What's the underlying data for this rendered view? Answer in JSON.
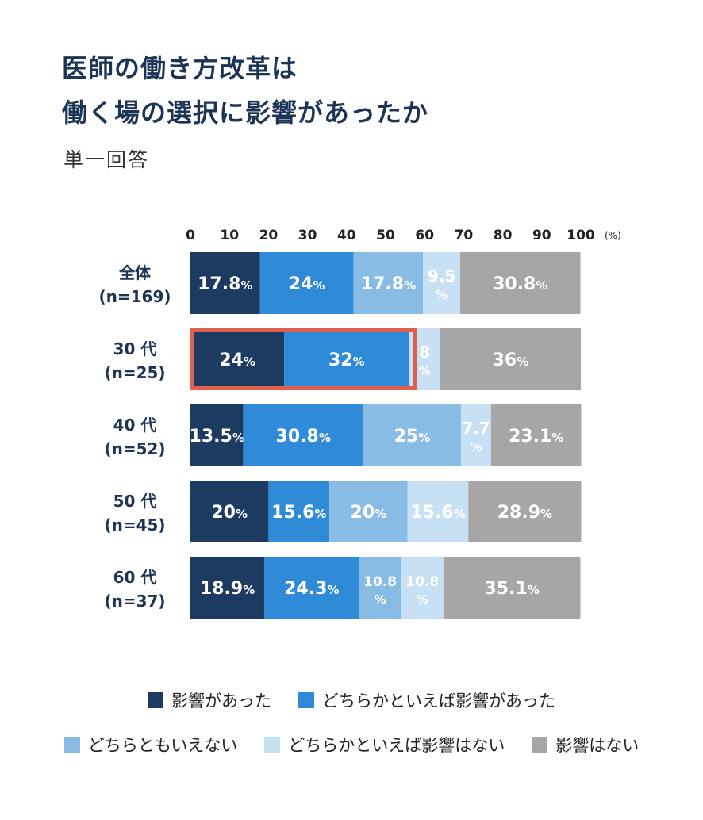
{
  "title_lines": [
    "医師の働き方改革は",
    "働く場の選択に影響があったか"
  ],
  "subtitle": "単一回答",
  "colors": {
    "c1": "#1d3a60",
    "c2": "#2f8ad8",
    "c3": "#88bce5",
    "c4": "#c8e0f4",
    "c5": "#a6a6a6",
    "highlight": "#e06050",
    "text_dark": "#1c3557"
  },
  "chart_data": {
    "type": "bar",
    "orientation": "horizontal-stacked",
    "unit_label": "(%)",
    "xlim": [
      0,
      100
    ],
    "xticks": [
      0,
      10,
      20,
      30,
      40,
      50,
      60,
      70,
      80,
      90,
      100
    ],
    "categories": [
      [
        "全体",
        "(n=169)"
      ],
      [
        "30 代",
        "(n=25)"
      ],
      [
        "40 代",
        "(n=52)"
      ],
      [
        "50 代",
        "(n=45)"
      ],
      [
        "60 代",
        "(n=37)"
      ]
    ],
    "series": [
      {
        "name": "影響があった",
        "color": "#1d3a60",
        "values": [
          17.8,
          24,
          13.5,
          20,
          18.9
        ]
      },
      {
        "name": "どちらかといえば影響があった",
        "color": "#2f8ad8",
        "values": [
          24,
          32,
          30.8,
          15.6,
          24.3
        ]
      },
      {
        "name": "どちらともいえない",
        "color": "#88bce5",
        "values": [
          17.8,
          0,
          25,
          20,
          10.8
        ]
      },
      {
        "name": "どちらかといえば影響はない",
        "color": "#c8e0f4",
        "values": [
          9.5,
          8,
          7.7,
          15.6,
          10.8
        ]
      },
      {
        "name": "影響はない",
        "color": "#a6a6a6",
        "values": [
          30.8,
          36,
          23.1,
          28.9,
          35.1
        ]
      }
    ],
    "highlight": {
      "category_index": 1,
      "series_through": 1
    },
    "legend_position": "bottom"
  }
}
